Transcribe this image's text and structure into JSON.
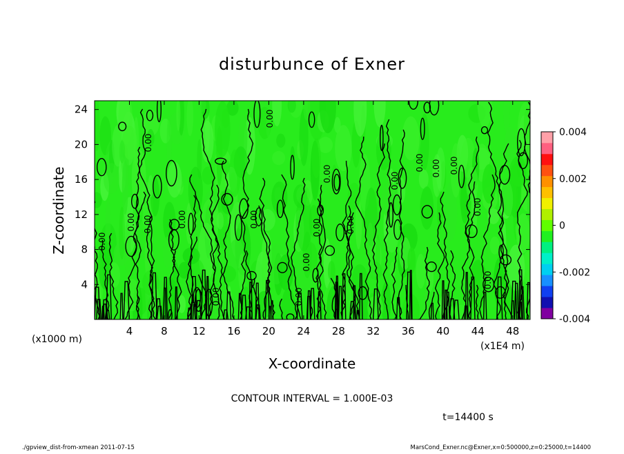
{
  "chart_data": {
    "type": "heatmap",
    "title": "disturbunce of Exner",
    "xlabel": "X-coordinate",
    "ylabel": "Z-coordinate",
    "x_unit_note": "(x1E4 m)",
    "y_unit_note": "(x1000 m)",
    "xlim": [
      0,
      50
    ],
    "ylim": [
      0,
      25
    ],
    "x_ticks": [
      "4",
      "8",
      "12",
      "16",
      "20",
      "24",
      "28",
      "32",
      "36",
      "40",
      "44",
      "48"
    ],
    "y_ticks": [
      "4",
      "8",
      "12",
      "16",
      "20",
      "24"
    ],
    "colorbar": {
      "range": [
        -0.004,
        0.004
      ],
      "tick_labels": [
        "0.004",
        "0.002",
        "0",
        "-0.002",
        "-0.004"
      ],
      "colors": [
        "#8000a0",
        "#1010b0",
        "#1040f0",
        "#1890ff",
        "#00d0f0",
        "#00f0c8",
        "#00f080",
        "#20f020",
        "#60ff00",
        "#b0f000",
        "#f0f000",
        "#ffc000",
        "#ff9000",
        "#ff5010",
        "#ff1010",
        "#ff6080",
        "#ffa0a8"
      ]
    },
    "contour_labels": [
      "0.00"
    ],
    "contour_interval": "CONTOUR INTERVAL = 1.000E-03",
    "time_label": "t=14400 s"
  },
  "footer": {
    "left": "./gpview_dist-from-xmean  2011-07-15",
    "right": "MarsCond_Exner.nc@Exner,x=0:500000,z=0:25000,t=14400"
  }
}
